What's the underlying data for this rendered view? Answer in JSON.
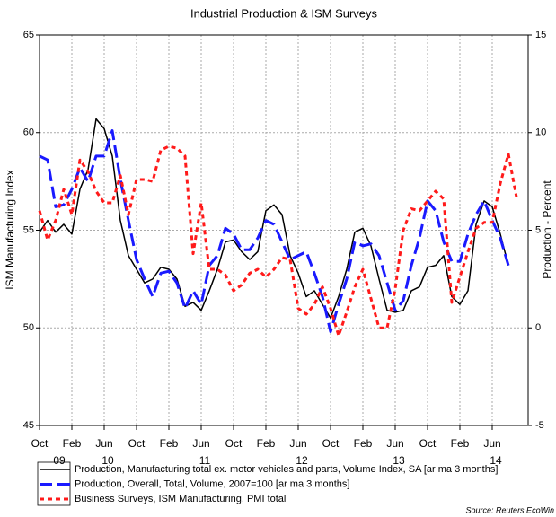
{
  "chart_data": {
    "type": "line",
    "title": "Industrial Production & ISM Surveys",
    "ylabel": "ISM Manufacturing Index",
    "y2label": "Production - Percent",
    "source": "Source: Reuters EcoWin",
    "x": [
      "2009-10",
      "2009-11",
      "2009-12",
      "2010-01",
      "2010-02",
      "2010-03",
      "2010-04",
      "2010-05",
      "2010-06",
      "2010-07",
      "2010-08",
      "2010-09",
      "2010-10",
      "2010-11",
      "2010-12",
      "2011-01",
      "2011-02",
      "2011-03",
      "2011-04",
      "2011-05",
      "2011-06",
      "2011-07",
      "2011-08",
      "2011-09",
      "2011-10",
      "2011-11",
      "2011-12",
      "2012-01",
      "2012-02",
      "2012-03",
      "2012-04",
      "2012-05",
      "2012-06",
      "2012-07",
      "2012-08",
      "2012-09",
      "2012-10",
      "2012-11",
      "2012-12",
      "2013-01",
      "2013-02",
      "2013-03",
      "2013-04",
      "2013-05",
      "2013-06",
      "2013-07",
      "2013-08",
      "2013-09",
      "2013-10",
      "2013-11",
      "2013-12",
      "2014-01",
      "2014-02",
      "2014-03",
      "2014-04",
      "2014-05",
      "2014-06",
      "2014-07",
      "2014-08",
      "2014-09"
    ],
    "xlim": [
      "2009-10",
      "2014-09"
    ],
    "xticks": [
      {
        "value": "2009-10",
        "label": "Oct"
      },
      {
        "value": "2010-02",
        "label": "Feb"
      },
      {
        "value": "2010-06",
        "label": "Jun"
      },
      {
        "value": "2010-10",
        "label": "Oct"
      },
      {
        "value": "2011-02",
        "label": "Feb"
      },
      {
        "value": "2011-06",
        "label": "Jun"
      },
      {
        "value": "2011-10",
        "label": "Oct"
      },
      {
        "value": "2012-02",
        "label": "Feb"
      },
      {
        "value": "2012-06",
        "label": "Jun"
      },
      {
        "value": "2012-10",
        "label": "Oct"
      },
      {
        "value": "2013-02",
        "label": "Feb"
      },
      {
        "value": "2013-06",
        "label": "Jun"
      },
      {
        "value": "2013-10",
        "label": "Oct"
      },
      {
        "value": "2014-02",
        "label": "Feb"
      },
      {
        "value": "2014-06",
        "label": "Jun"
      }
    ],
    "year_labels": [
      {
        "value": "2009-12",
        "label": "09"
      },
      {
        "value": "2010-06",
        "label": "10"
      },
      {
        "value": "2011-06",
        "label": "11"
      },
      {
        "value": "2012-06",
        "label": "12"
      },
      {
        "value": "2013-06",
        "label": "13"
      },
      {
        "value": "2014-06",
        "label": "14"
      }
    ],
    "ylim": [
      45,
      65
    ],
    "yticks": [
      45,
      50,
      55,
      60,
      65
    ],
    "y2lim": [
      -5,
      15
    ],
    "y2ticks": [
      -5,
      0,
      5,
      10,
      15
    ],
    "grid": true,
    "series": [
      {
        "name": "Production, Manufacturing total ex. motor vehicles and parts, Volume Index, SA [ar ma 3 months]",
        "color": "#000000",
        "axis": "y2",
        "dash": "none",
        "width": 1.5,
        "values": [
          4.9,
          5.5,
          4.9,
          5.3,
          4.8,
          7.1,
          8.1,
          10.7,
          10.2,
          8.8,
          5.5,
          3.7,
          3.0,
          2.3,
          2.5,
          3.1,
          3.0,
          2.5,
          1.1,
          1.3,
          0.9,
          1.9,
          3.0,
          4.4,
          4.5,
          3.9,
          3.5,
          3.9,
          6.0,
          6.3,
          5.8,
          3.7,
          2.8,
          1.6,
          1.9,
          1.2,
          0.5,
          1.6,
          3.0,
          4.9,
          5.1,
          4.2,
          2.5,
          0.9,
          0.8,
          0.9,
          1.9,
          2.1,
          3.1,
          3.2,
          3.7,
          1.6,
          1.2,
          1.9,
          5.3,
          6.5,
          6.2,
          4.8,
          3.2,
          null
        ]
      },
      {
        "name": "Production, Overall, Total, Volume, 2007=100 [ar ma 3 months]",
        "color": "#1a1aff",
        "axis": "y2",
        "dash": "14,6",
        "width": 3,
        "values": [
          8.8,
          8.6,
          6.2,
          6.3,
          7.1,
          8.2,
          7.5,
          8.8,
          8.8,
          10.1,
          7.6,
          5.5,
          3.5,
          2.5,
          1.6,
          2.8,
          2.9,
          2.3,
          1.0,
          1.9,
          1.2,
          3.2,
          3.7,
          5.1,
          4.8,
          4.0,
          4.0,
          4.6,
          5.5,
          5.3,
          4.4,
          3.5,
          3.7,
          3.9,
          2.8,
          1.6,
          -0.2,
          1.2,
          2.5,
          4.4,
          4.2,
          4.3,
          3.7,
          2.3,
          0.9,
          1.4,
          3.2,
          4.6,
          6.5,
          6.0,
          4.4,
          3.4,
          3.4,
          4.8,
          5.8,
          6.5,
          5.5,
          4.6,
          3.2,
          null
        ]
      },
      {
        "name": "Business Surveys, ISM Manufacturing, PMI total",
        "color": "#ff1a1a",
        "axis": "y",
        "dash": "5,4",
        "width": 3,
        "values": [
          56.0,
          54.5,
          55.5,
          57.1,
          55.8,
          58.6,
          58.0,
          57.0,
          56.4,
          56.4,
          57.8,
          55.8,
          57.6,
          57.6,
          57.5,
          59.1,
          59.3,
          59.2,
          58.8,
          53.8,
          56.4,
          53.0,
          53.0,
          52.7,
          51.9,
          52.2,
          52.8,
          53.0,
          52.6,
          53.0,
          53.6,
          53.5,
          51.0,
          50.7,
          51.2,
          52.1,
          51.0,
          49.6,
          50.8,
          52.1,
          53.0,
          51.5,
          50.0,
          50.0,
          52.0,
          55.0,
          56.1,
          56.0,
          56.5,
          57.0,
          56.6,
          51.3,
          52.6,
          53.9,
          55.1,
          55.4,
          55.4,
          57.4,
          58.9,
          56.7
        ]
      }
    ]
  }
}
